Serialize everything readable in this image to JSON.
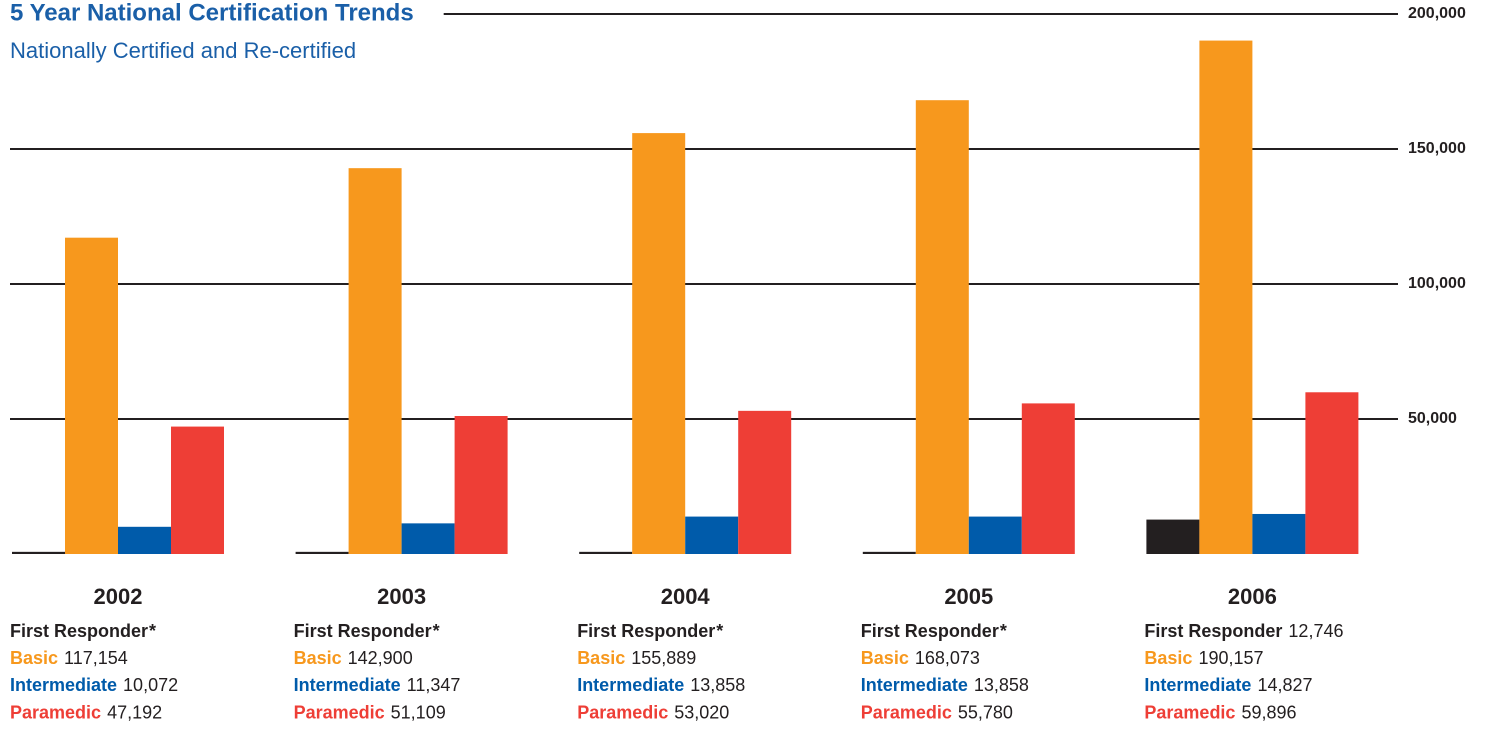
{
  "chart_data": {
    "type": "bar",
    "title": "5 Year National Certification Trends",
    "subtitle": "Nationally Certified and Re-certified",
    "categories": [
      "2002",
      "2003",
      "2004",
      "2005",
      "2006"
    ],
    "series": [
      {
        "name": "First Responder",
        "color": "#231f20",
        "values": [
          800,
          800,
          800,
          800,
          12746
        ],
        "value_labels": [
          "*",
          "*",
          "*",
          "*",
          "12,746"
        ]
      },
      {
        "name": "Basic",
        "color": "#f7981d",
        "values": [
          117154,
          142900,
          155889,
          168073,
          190157
        ],
        "value_labels": [
          "117,154",
          "142,900",
          "155,889",
          "168,073",
          "190,157"
        ]
      },
      {
        "name": "Intermediate",
        "color": "#005baa",
        "values": [
          10072,
          11347,
          13858,
          13858,
          14827
        ],
        "value_labels": [
          "10,072",
          "11,347",
          "13,858",
          "13,858",
          "14,827"
        ]
      },
      {
        "name": "Paramedic",
        "color": "#ee3e36",
        "values": [
          47192,
          51109,
          53020,
          55780,
          59896
        ],
        "value_labels": [
          "47,192",
          "51,109",
          "53,020",
          "55,780",
          "59,896"
        ]
      }
    ],
    "ylim": [
      0,
      200000
    ],
    "yticks": [
      {
        "value": 50000,
        "label": "50,000"
      },
      {
        "value": 100000,
        "label": "100,000"
      },
      {
        "value": 150000,
        "label": "150,000"
      },
      {
        "value": 200000,
        "label": "200,000"
      }
    ],
    "grid": true
  }
}
